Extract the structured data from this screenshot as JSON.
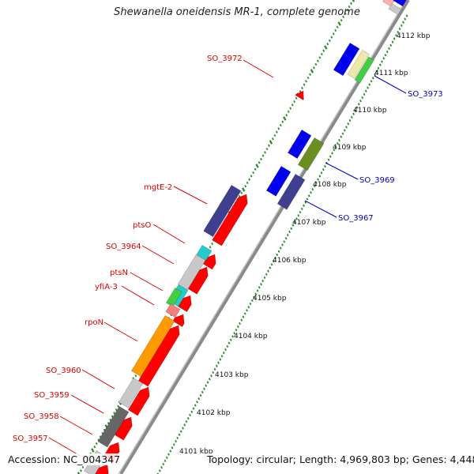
{
  "title": "Shewanella oneidensis MR-1, complete genome",
  "footer": {
    "accession": "Accession: NC_004347",
    "topology": "Topology: circular;",
    "length": "Length: 4,969,803 bp;",
    "genes": "Genes: 4,448"
  },
  "colors": {
    "backbone": "#8a8a8a",
    "ticks": "#228B22",
    "cds_reverse": "#ff0000",
    "gene_label_left": "#dd0000",
    "gene_label_right": "#0000bb",
    "blue_gene": "#0000ee",
    "purple_gene": "#3f3f8f",
    "olive_gene": "#6b8e23",
    "green_gene": "#44cc44",
    "cyan_gene": "#22cccc",
    "pink_gene": "#f08080",
    "orange_gene": "#ff9900",
    "light_gray_gene": "#c8c8c8",
    "dark_gray_gene": "#666666",
    "khaki_gene": "#eee8aa"
  },
  "kbp_labels": [
    "4112 kbp",
    "4111 kbp",
    "4110 kbp",
    "4109 kbp",
    "4108 kbp",
    "4107 kbp",
    "4106 kbp",
    "4105 kbp",
    "4104 kbp",
    "4103 kbp",
    "4102 kbp",
    "4101 kbp"
  ],
  "gene_labels_left": [
    "SO_3972",
    "mgtE-2",
    "ptsO",
    "SO_3964",
    "ptsN",
    "yfiA-3",
    "rpoN",
    "SO_3960",
    "SO_3959",
    "SO_3958",
    "SO_3957"
  ],
  "gene_labels_right": [
    "SO_3973",
    "SO_3969",
    "SO_3967"
  ]
}
